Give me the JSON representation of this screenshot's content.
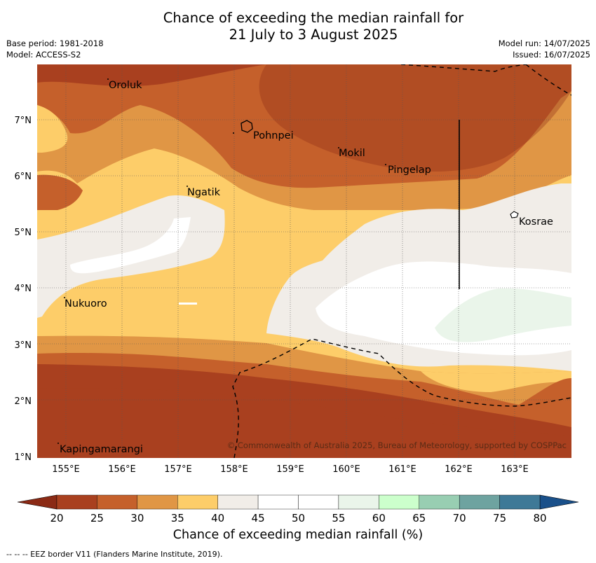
{
  "header": {
    "title_line1": "Chance of exceeding the median rainfall for",
    "title_line2": "21 July to 3 August 2025",
    "base_period": "Base period: 1981-2018",
    "model": "Model: ACCESS-S2",
    "model_run": "Model run: 14/07/2025",
    "issued": "Issued: 16/07/2025"
  },
  "map": {
    "lon_ticks": [
      "155°E",
      "156°E",
      "157°E",
      "158°E",
      "159°E",
      "160°E",
      "161°E",
      "162°E",
      "163°E"
    ],
    "lat_ticks": [
      "7°N",
      "6°N",
      "5°N",
      "4°N",
      "3°N",
      "2°N",
      "1°N"
    ],
    "places": [
      "Oroluk",
      "Pohnpei",
      "Mokil",
      "Pingelap",
      "Ngatik",
      "Kosrae",
      "Nukuoro",
      "Kapingamarangi"
    ],
    "copyright": "© Commonwealth of Australia 2025, Bureau of Meteorology, supported by COSPPac"
  },
  "colorbar": {
    "ticks": [
      "20",
      "25",
      "30",
      "35",
      "40",
      "45",
      "50",
      "55",
      "60",
      "65",
      "70",
      "75",
      "80"
    ],
    "colors": [
      "#a9401f",
      "#c5602b",
      "#e09645",
      "#fdcd69",
      "#f1ede8",
      "#ffffff",
      "#ffffff",
      "#eaf5ea",
      "#ccffcc",
      "#98ceb2",
      "#6ea3a0",
      "#3e7997"
    ],
    "under_color": "#8b2a15",
    "over_color": "#1a508a",
    "label": "Chance of exceeding median rainfall (%)"
  },
  "footnote": "--  --  -- EEZ border V11 (Flanders Marine Institute, 2019)."
}
